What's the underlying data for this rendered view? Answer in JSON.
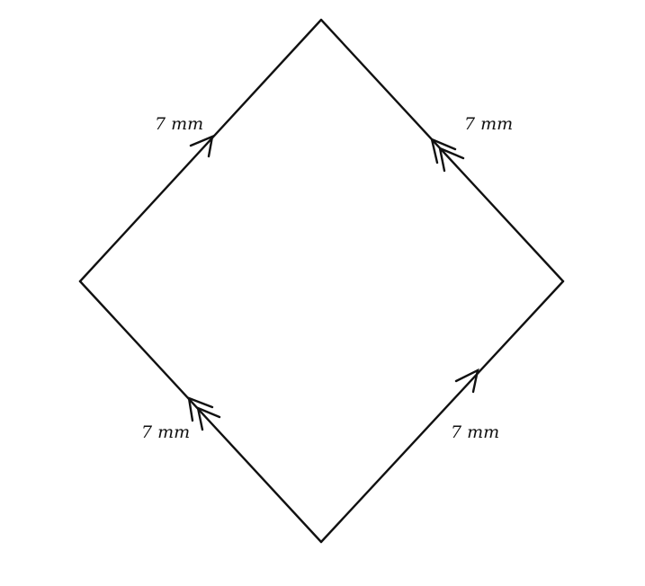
{
  "figure": {
    "shape": "rhombus",
    "stroke_color": "#111111",
    "background_color": "#ffffff",
    "sides": [
      {
        "id": "top-left",
        "label": "7 mm",
        "parallel_marks": 1
      },
      {
        "id": "top-right",
        "label": "7 mm",
        "parallel_marks": 2
      },
      {
        "id": "bottom-left",
        "label": "7 mm",
        "parallel_marks": 2
      },
      {
        "id": "bottom-right",
        "label": "7 mm",
        "parallel_marks": 1
      }
    ]
  }
}
